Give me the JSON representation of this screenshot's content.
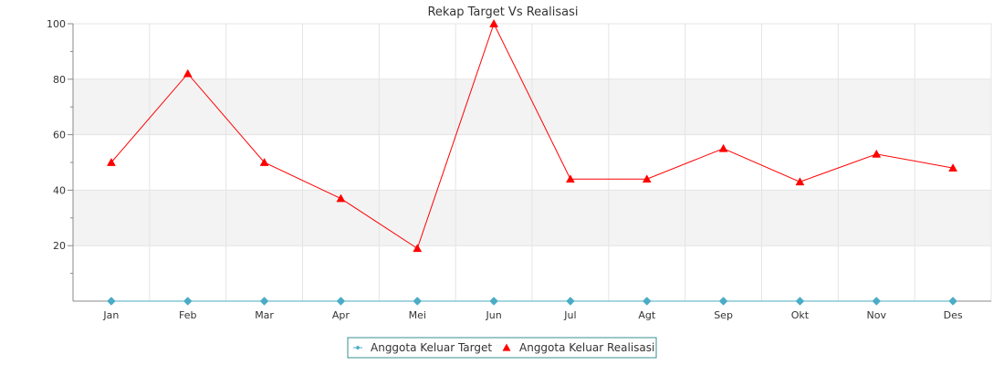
{
  "chart_data": {
    "type": "line",
    "title": "Rekap Target Vs Realisasi",
    "categories": [
      "Jan",
      "Feb",
      "Mar",
      "Apr",
      "Mei",
      "Jun",
      "Jul",
      "Agt",
      "Sep",
      "Okt",
      "Nov",
      "Des"
    ],
    "series": [
      {
        "name": "Anggota Keluar Target",
        "values": [
          0,
          0,
          0,
          0,
          0,
          0,
          0,
          0,
          0,
          0,
          0,
          0
        ],
        "color": "#4bacc6",
        "marker": "diamond"
      },
      {
        "name": "Anggota Keluar Realisasi",
        "values": [
          50,
          82,
          50,
          37,
          19,
          100,
          44,
          44,
          55,
          43,
          53,
          48
        ],
        "color": "#ff0000",
        "marker": "triangle"
      }
    ],
    "xlabel": "",
    "ylabel": "",
    "ylim": [
      0,
      100
    ],
    "yticks": [
      20,
      40,
      60,
      80,
      100
    ],
    "grid": true,
    "legend_position": "bottom-center"
  }
}
